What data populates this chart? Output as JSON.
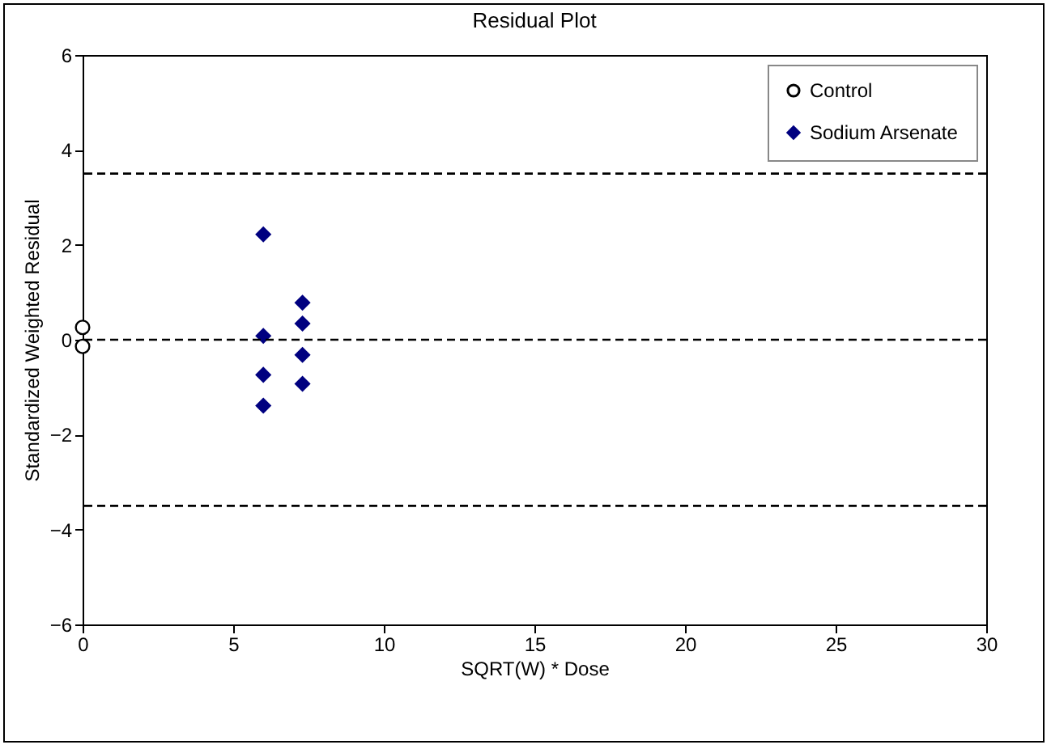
{
  "chart_data": {
    "type": "scatter",
    "title": "Residual Plot",
    "xlabel": "SQRT(W) * Dose",
    "ylabel": "Standardized Weighted Residual",
    "xlim": [
      0,
      30
    ],
    "xticks": [
      0,
      5,
      10,
      15,
      20,
      25,
      30
    ],
    "ylim": [
      -6,
      6
    ],
    "yticks": [
      -6,
      -4,
      -2,
      0,
      2,
      4,
      6
    ],
    "grid": false,
    "legend": "top right",
    "series": [
      {
        "name": "Control",
        "color": "#000000",
        "marker": "circle",
        "x": [
          0,
          0
        ],
        "values": [
          0.26,
          -0.14
        ]
      },
      {
        "name": "Sodium Arsenate",
        "color": "#000080",
        "marker": "diamond",
        "x": [
          6,
          6,
          6,
          6,
          7.3,
          7.3,
          7.3,
          7.3
        ],
        "values": [
          2.22,
          0.08,
          -0.74,
          -1.39,
          0.78,
          0.34,
          -0.32,
          -0.93
        ]
      }
    ],
    "ref_lines": [
      {
        "axis": "y",
        "value": 3.5,
        "color": "#000000",
        "line_style": "dashed"
      },
      {
        "axis": "y",
        "value": 0,
        "color": "#000000",
        "line_style": "dashed"
      },
      {
        "axis": "y",
        "value": -3.5,
        "color": "#000000",
        "line_style": "dashed"
      }
    ]
  }
}
